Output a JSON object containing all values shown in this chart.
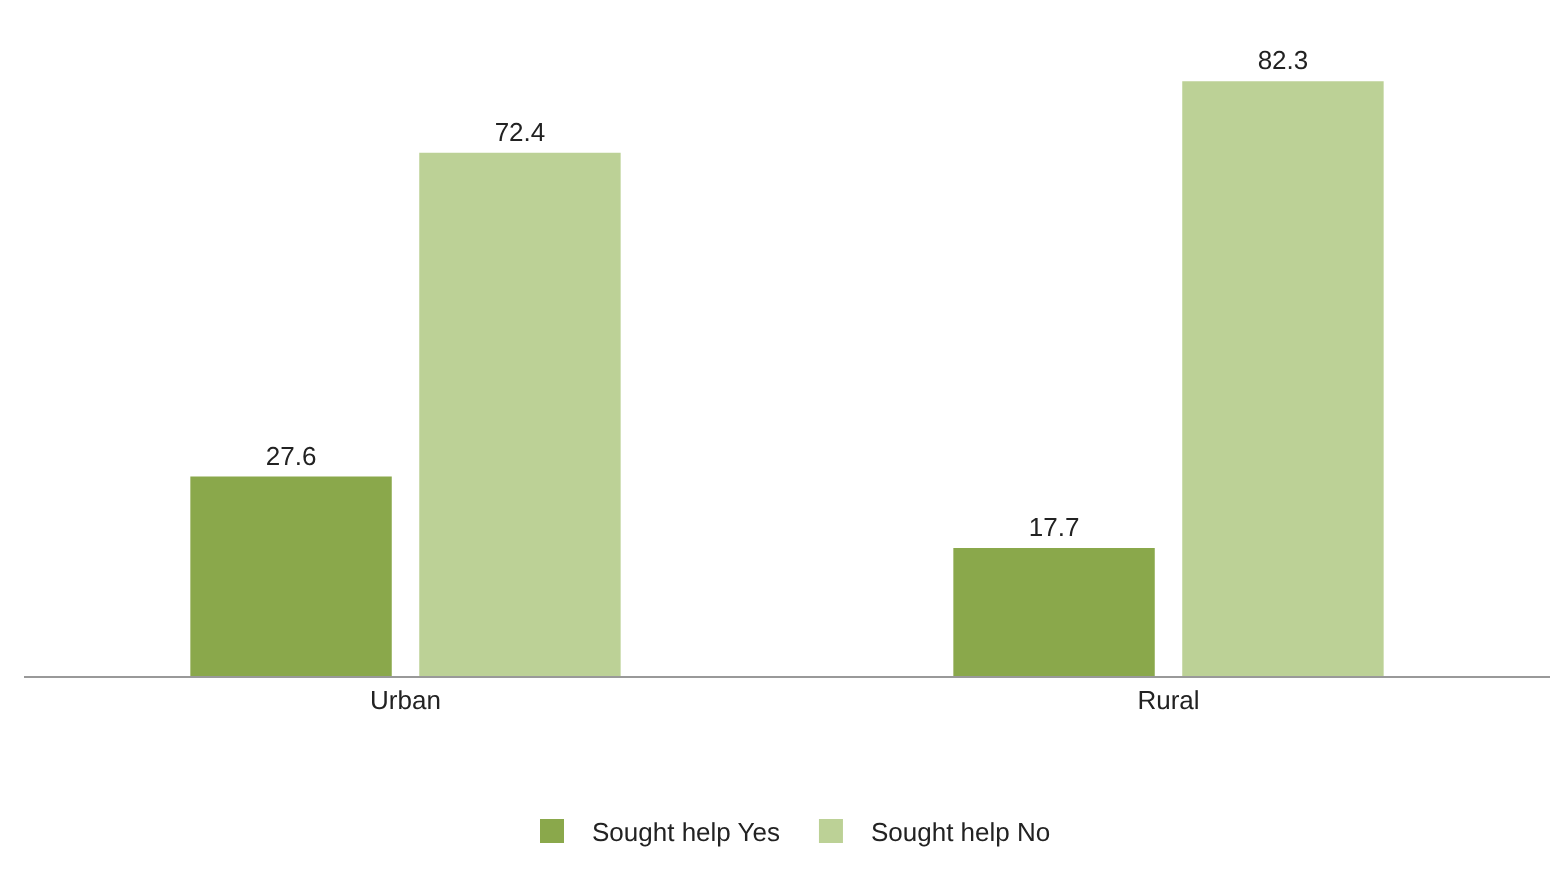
{
  "chart_data": {
    "type": "bar",
    "categories": [
      "Urban",
      "Rural"
    ],
    "series": [
      {
        "name": "Sought help Yes",
        "color": "#8aa84b",
        "values": [
          27.6,
          17.7
        ]
      },
      {
        "name": "Sought help No",
        "color": "#bcd196",
        "values": [
          72.4,
          82.3
        ]
      }
    ],
    "data_labels": true,
    "legend": "bottom",
    "tick_labels": "x"
  }
}
